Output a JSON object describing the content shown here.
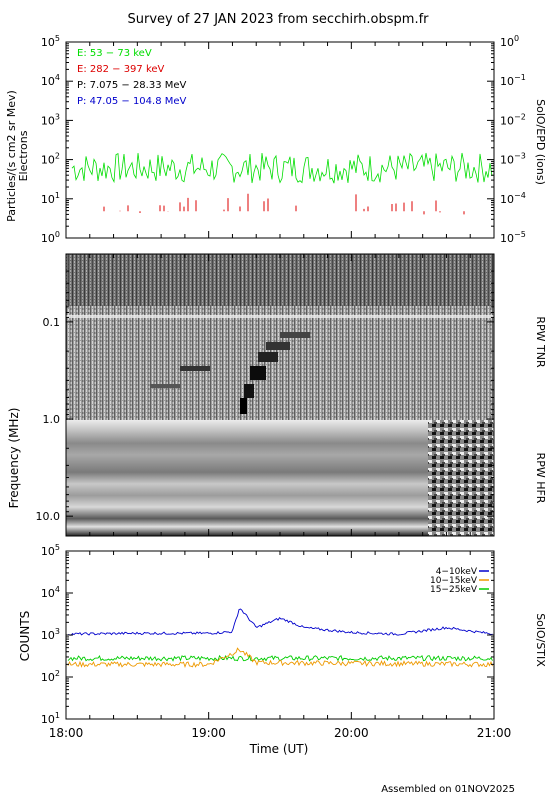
{
  "title": "Survey of 27 JAN 2023 from secchirh.obspm.fr",
  "footer": "Assembled on 01NOV2025",
  "chart_data": [
    {
      "panel": "epd",
      "type": "line",
      "ylabel_left": "Particles/(s cm2 sr Mev)",
      "ylabel_left_sub": "Electrons",
      "ylabel_right": "SolO/EPD (ions)",
      "yscale": "log",
      "ylim": [
        1,
        100000
      ],
      "yticks_left": [
        {
          "base": "10",
          "exp": "0"
        },
        {
          "base": "10",
          "exp": "1"
        },
        {
          "base": "10",
          "exp": "2"
        },
        {
          "base": "10",
          "exp": "3"
        },
        {
          "base": "10",
          "exp": "4"
        },
        {
          "base": "10",
          "exp": "5"
        }
      ],
      "yticks_right": [
        {
          "base": "10",
          "exp": "−5"
        },
        {
          "base": "10",
          "exp": "−4"
        },
        {
          "base": "10",
          "exp": "−3"
        },
        {
          "base": "10",
          "exp": "−2"
        },
        {
          "base": "10",
          "exp": "−1"
        },
        {
          "base": "10",
          "exp": "0"
        }
      ],
      "legend": [
        {
          "label": "E: 53 − 73 keV",
          "color": "#00dd00"
        },
        {
          "label": "E: 282 − 397 keV",
          "color": "#dd0000"
        },
        {
          "label": "P: 7.075 − 28.33 MeV",
          "color": "#000000"
        },
        {
          "label": "P: 47.05 − 104.8 MeV",
          "color": "#0000cc"
        }
      ],
      "series": [
        {
          "name": "E: 53 − 73 keV",
          "color": "#00dd00",
          "typical_range": [
            25,
            150
          ]
        },
        {
          "name": "E: 282 − 397 keV",
          "color": "#dd0000",
          "typical_range": [
            4,
            15
          ]
        }
      ]
    },
    {
      "panel": "rpw",
      "type": "heatmap",
      "ylabel": "Frequency (MHz)",
      "ylabel_right_top": "RPW TNR",
      "ylabel_right_bottom": "RPW HFR",
      "yscale": "log",
      "ylim": [
        16,
        0.02
      ],
      "yticks": [
        "0.1",
        "1.0",
        "10.0"
      ]
    },
    {
      "panel": "stix",
      "type": "line",
      "ylabel": "COUNTS",
      "ylabel_right": "SolO/STIX",
      "xlabel": "Time (UT)",
      "yscale": "log",
      "ylim": [
        10,
        100000
      ],
      "yticks": [
        {
          "base": "10",
          "exp": "1"
        },
        {
          "base": "10",
          "exp": "2"
        },
        {
          "base": "10",
          "exp": "3"
        },
        {
          "base": "10",
          "exp": "4"
        },
        {
          "base": "10",
          "exp": "5"
        }
      ],
      "x_ticks": [
        "18:00",
        "19:00",
        "20:00",
        "21:00"
      ],
      "legend": [
        {
          "label": "4−10keV",
          "color": "#0000cc"
        },
        {
          "label": "10−15keV",
          "color": "#ee9900"
        },
        {
          "label": "15−25keV",
          "color": "#00cc00"
        }
      ],
      "series": [
        {
          "name": "4−10keV",
          "color": "#0000cc",
          "x": [
            "18:00",
            "18:30",
            "19:00",
            "19:10",
            "19:13",
            "19:20",
            "19:30",
            "19:35",
            "19:40",
            "20:00",
            "20:20",
            "20:40",
            "20:50",
            "21:00"
          ],
          "values": [
            1050,
            1100,
            1100,
            1200,
            4500,
            1500,
            2500,
            2000,
            1500,
            1150,
            1050,
            1500,
            1250,
            1050
          ]
        },
        {
          "name": "10−15keV",
          "color": "#ee9900",
          "x": [
            "18:00",
            "19:00",
            "19:13",
            "19:20",
            "21:00"
          ],
          "values": [
            200,
            200,
            450,
            220,
            200
          ]
        },
        {
          "name": "15−25keV",
          "color": "#00cc00",
          "x": [
            "18:00",
            "19:00",
            "21:00"
          ],
          "values": [
            280,
            280,
            280
          ]
        }
      ]
    }
  ]
}
